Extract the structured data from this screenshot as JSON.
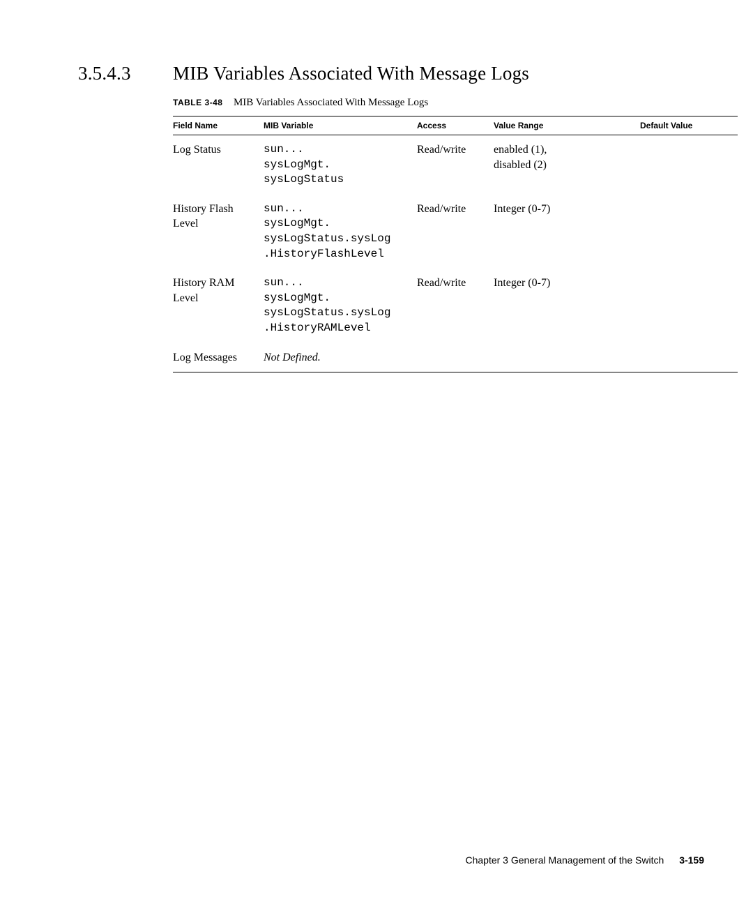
{
  "section": {
    "number": "3.5.4.3",
    "title": "MIB Variables Associated With Message Logs"
  },
  "table": {
    "label": "TABLE 3-48",
    "caption": "MIB Variables Associated With Message Logs",
    "columns": [
      "Field Name",
      "MIB Variable",
      "Access",
      "Value Range",
      "Default Value"
    ],
    "rows": [
      {
        "field": "Log Status",
        "mib": "sun...\nsysLogMgt.\nsysLogStatus",
        "access": "Read/write",
        "range": "enabled (1),\ndisabled (2)",
        "default": "",
        "mib_mono": true
      },
      {
        "field": "History Flash Level",
        "mib": "sun...\nsysLogMgt.\nsysLogStatus.sysLog\n.HistoryFlashLevel",
        "access": "Read/write",
        "range": "Integer (0-7)",
        "default": "",
        "mib_mono": true
      },
      {
        "field": "History RAM Level",
        "mib": "sun...\nsysLogMgt.\nsysLogStatus.sysLog\n.HistoryRAMLevel",
        "access": "Read/write",
        "range": "Integer (0-7)",
        "default": "",
        "mib_mono": true
      },
      {
        "field": "Log Messages",
        "mib": "Not Defined.",
        "access": "",
        "range": "",
        "default": "",
        "mib_mono": false,
        "mib_italic": true
      }
    ]
  },
  "footer": {
    "chapter": "Chapter 3    General Management of the Switch",
    "page": "3-159"
  }
}
